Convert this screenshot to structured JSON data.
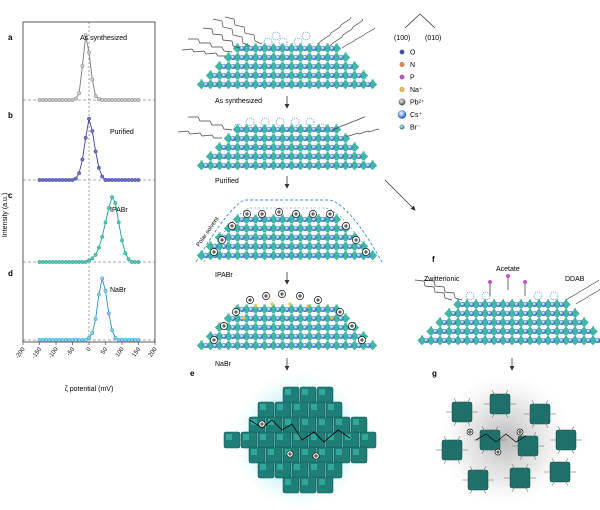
{
  "panel_letters": {
    "a": "a",
    "b": "b",
    "c": "c",
    "d": "d",
    "e": "e",
    "f": "f",
    "g": "g"
  },
  "chart_data": {
    "type": "line",
    "xlabel": "ζ potential (mV)",
    "ylabel": "Intensity (a.u.)",
    "xlim": [
      -200,
      200
    ],
    "xticks": [
      "-200",
      "-150",
      "-100",
      "-50",
      "0",
      "50",
      "100",
      "150",
      "200"
    ],
    "panels": [
      {
        "name": "As synthesized",
        "color": "#777777",
        "fill": "#cfcfcf",
        "x": [
          -150,
          -140,
          -130,
          -120,
          -110,
          -100,
          -90,
          -80,
          -70,
          -60,
          -50,
          -40,
          -30,
          -20,
          -10,
          0,
          10,
          20,
          30,
          40,
          50,
          60,
          70,
          80,
          90,
          100,
          110,
          120,
          130,
          140,
          150
        ],
        "y": [
          0,
          0,
          0,
          0,
          0,
          0,
          0,
          0,
          0,
          0,
          0,
          0.02,
          0.1,
          0.5,
          0.95,
          0.7,
          0.3,
          0.06,
          0.01,
          0,
          0,
          0,
          0,
          0,
          0,
          0,
          0,
          0,
          0,
          0,
          0
        ]
      },
      {
        "name": "Purified",
        "color": "#3a3f9a",
        "fill": "#6f74c8",
        "x": [
          -150,
          -140,
          -130,
          -120,
          -110,
          -100,
          -90,
          -80,
          -70,
          -60,
          -50,
          -40,
          -30,
          -20,
          -10,
          0,
          10,
          20,
          30,
          40,
          50,
          60,
          70,
          80,
          90,
          100,
          110,
          120,
          130,
          140,
          150
        ],
        "y": [
          0,
          0,
          0,
          0,
          0,
          0,
          0,
          0,
          0,
          0,
          0,
          0.02,
          0.1,
          0.3,
          0.62,
          0.9,
          0.72,
          0.42,
          0.18,
          0.05,
          0,
          0,
          0,
          0,
          0,
          0,
          0,
          0,
          0,
          0,
          0
        ]
      },
      {
        "name": "IPABr",
        "color": "#1f9e8f",
        "fill": "#5ac7b3",
        "x": [
          -150,
          -140,
          -130,
          -120,
          -110,
          -100,
          -90,
          -80,
          -70,
          -60,
          -50,
          -40,
          -30,
          -20,
          -10,
          0,
          10,
          20,
          30,
          40,
          50,
          60,
          70,
          80,
          90,
          100,
          110,
          120,
          130,
          140,
          150
        ],
        "y": [
          0,
          0,
          0,
          0,
          0,
          0,
          0,
          0,
          0,
          0,
          0,
          0,
          0,
          0,
          0,
          0.02,
          0.05,
          0.1,
          0.2,
          0.35,
          0.55,
          0.75,
          0.9,
          0.82,
          0.55,
          0.3,
          0.12,
          0.04,
          0,
          0,
          0
        ]
      },
      {
        "name": "NaBr",
        "color": "#2a8fc4",
        "fill": "#7fd4f0",
        "x": [
          -150,
          -140,
          -130,
          -120,
          -110,
          -100,
          -90,
          -80,
          -70,
          -60,
          -50,
          -40,
          -30,
          -20,
          -10,
          0,
          10,
          20,
          30,
          40,
          50,
          60,
          70,
          80,
          90,
          100,
          110,
          120,
          130,
          140,
          150
        ],
        "y": [
          0,
          0,
          0,
          0,
          0,
          0,
          0,
          0,
          0,
          0,
          0,
          0,
          0,
          0,
          0,
          0.03,
          0.1,
          0.3,
          0.65,
          0.88,
          0.7,
          0.38,
          0.14,
          0.03,
          0,
          0,
          0,
          0,
          0,
          0,
          0
        ]
      }
    ]
  },
  "schematic": {
    "stage_labels": [
      "As synthesized",
      "Purified",
      "IPABr",
      "NaBr"
    ],
    "polar_solvent": "Polar solvent",
    "f_labels": {
      "zwitterionic": "Zwitterionic",
      "acetate": "Acetate",
      "ddab": "DDAB"
    }
  },
  "legend": {
    "axes": [
      "(100)",
      "(010)"
    ],
    "items": [
      {
        "label": "O",
        "color": "#3b4fbf"
      },
      {
        "label": "N",
        "color": "#e58a4a"
      },
      {
        "label": "P",
        "color": "#c455c4"
      },
      {
        "label": "Na⁺",
        "color": "#e8c83a"
      },
      {
        "label": "Pb²⁺",
        "color": "#8a8a8a"
      },
      {
        "label": "Cs⁺",
        "color": "#3a7bd5"
      },
      {
        "label": "Br⁻",
        "color": "#2fae9a"
      }
    ]
  },
  "colors": {
    "teal": "#2fae9a",
    "darkteal": "#1f6f6a",
    "blue": "#3a7bd5",
    "gray": "#8a8a8a",
    "arrow": "#333333"
  }
}
